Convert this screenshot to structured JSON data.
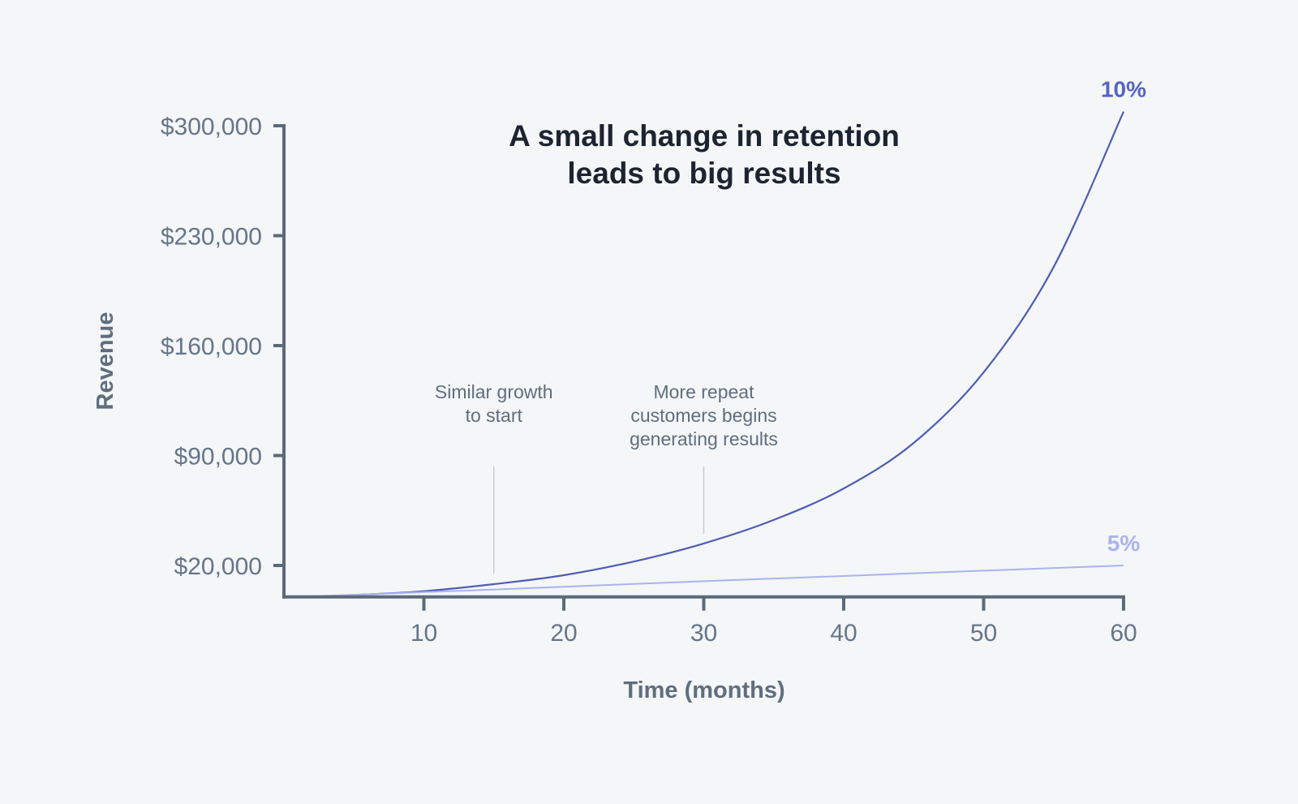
{
  "chart_data": {
    "type": "line",
    "title": [
      "A small change in retention",
      "leads to big results"
    ],
    "xlabel": "Time (months)",
    "ylabel": "Revenue",
    "xlim": [
      0,
      60
    ],
    "ylim": [
      0,
      300000
    ],
    "x_ticks": [
      10,
      20,
      30,
      40,
      50,
      60
    ],
    "x_tick_labels": [
      "10",
      "20",
      "30",
      "40",
      "50",
      "60"
    ],
    "y_ticks": [
      20000,
      90000,
      160000,
      230000,
      300000
    ],
    "y_tick_labels": [
      "$20,000",
      "$90,000",
      "$160,000",
      "$230,000",
      "$300,000"
    ],
    "grid": false,
    "legend": "none; series labelled at line ends (right)",
    "series": [
      {
        "name": "10%",
        "color": "#4f5db3",
        "label_color": "#5564c2",
        "x": [
          2,
          5,
          10,
          15,
          20,
          25,
          30,
          35,
          40,
          45,
          50,
          55,
          60
        ],
        "y": [
          0,
          1200,
          3600,
          8100,
          13800,
          22500,
          34000,
          49000,
          69000,
          98000,
          143000,
          210000,
          309000
        ]
      },
      {
        "name": "5%",
        "color": "#a9b4ee",
        "label_color": "#aab4ec",
        "x": [
          1,
          10,
          20,
          30,
          40,
          50,
          60
        ],
        "y": [
          0,
          3000,
          6400,
          10000,
          13300,
          16700,
          20000
        ]
      }
    ],
    "annotations": [
      {
        "x": 15,
        "text": [
          "Similar growth",
          "to start"
        ]
      },
      {
        "x": 30,
        "text": [
          "More repeat",
          "customers begins",
          "generating results"
        ]
      }
    ],
    "colors": {
      "background": "#f4f6f8",
      "axis": "#5b6a7a",
      "annotation_line": "#c7ccd3"
    }
  }
}
